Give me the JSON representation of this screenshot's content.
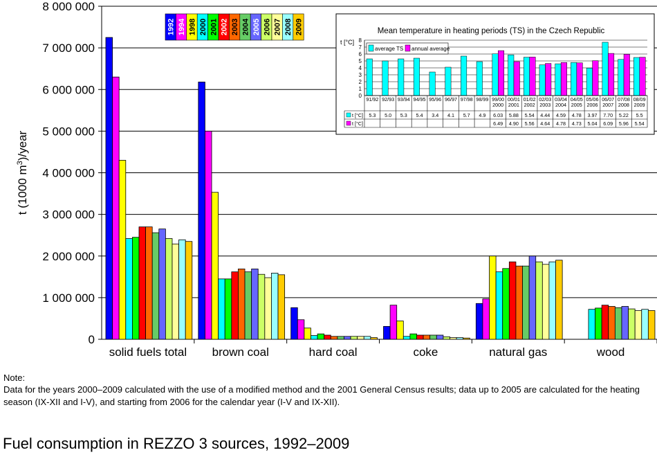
{
  "chart_data": [
    {
      "type": "bar",
      "ylabel": "t (1000 m³)/year",
      "ylabel_main": "t (1000 m",
      "ylabel_sup": "3",
      "ylabel_rest": ")/year",
      "ylim": [
        0,
        8000000
      ],
      "yticks": [
        0,
        1000000,
        2000000,
        3000000,
        4000000,
        5000000,
        6000000,
        7000000,
        8000000
      ],
      "ytick_labels": [
        "0",
        "1 000 000",
        "2 000 000",
        "3 000 000",
        "4 000 000",
        "5 000 000",
        "6 000 000",
        "7 000 000",
        "8 000 000"
      ],
      "grid": "horizontal",
      "legend_placement": "top (between solid fuels total and brown coal)",
      "categories": [
        "solid fuels total",
        "brown coal",
        "hard coal",
        "coke",
        "natural gas",
        "wood"
      ],
      "series": [
        {
          "name": "1992",
          "color": "#0000ff",
          "values": [
            7250000,
            6180000,
            760000,
            310000,
            860000,
            null
          ]
        },
        {
          "name": "1994",
          "color": "#ff00ff",
          "values": [
            6300000,
            5000000,
            470000,
            820000,
            970000,
            null
          ]
        },
        {
          "name": "1998",
          "color": "#ffff00",
          "values": [
            4300000,
            3530000,
            270000,
            440000,
            2000000,
            null
          ]
        },
        {
          "name": "2000",
          "color": "#00ffff",
          "values": [
            2420000,
            1450000,
            90000,
            70000,
            1620000,
            720000
          ]
        },
        {
          "name": "2001",
          "color": "#00ff00",
          "values": [
            2450000,
            1450000,
            130000,
            130000,
            1700000,
            750000
          ]
        },
        {
          "name": "2002",
          "color": "#ff0000",
          "values": [
            2700000,
            1620000,
            100000,
            100000,
            1860000,
            820000
          ]
        },
        {
          "name": "2003",
          "color": "#ff6600",
          "values": [
            2700000,
            1690000,
            70000,
            100000,
            1760000,
            790000
          ]
        },
        {
          "name": "2004",
          "color": "#66cc66",
          "values": [
            2560000,
            1620000,
            70000,
            100000,
            1760000,
            760000
          ]
        },
        {
          "name": "2005",
          "color": "#6666ff",
          "values": [
            2650000,
            1690000,
            70000,
            100000,
            2000000,
            790000
          ]
        },
        {
          "name": "2006",
          "color": "#ccff66",
          "values": [
            2420000,
            1560000,
            70000,
            60000,
            1860000,
            730000
          ]
        },
        {
          "name": "2007",
          "color": "#ffff99",
          "values": [
            2290000,
            1480000,
            70000,
            40000,
            1800000,
            690000
          ]
        },
        {
          "name": "2008",
          "color": "#99ffff",
          "values": [
            2390000,
            1590000,
            70000,
            40000,
            1860000,
            720000
          ]
        },
        {
          "name": "2009",
          "color": "#ffcc00",
          "values": [
            2350000,
            1550000,
            40000,
            30000,
            1900000,
            690000
          ]
        }
      ]
    },
    {
      "type": "bar",
      "title": "Mean temperature in heating periods (TS) in the Czech Republic",
      "ylabel": "t [°C]",
      "ylim": [
        0,
        8
      ],
      "yticks": [
        0,
        1,
        2,
        3,
        4,
        5,
        6,
        7,
        8
      ],
      "grid": "horizontal",
      "legend_placement": "top-left",
      "categories": [
        [
          "91/92"
        ],
        [
          "92/93"
        ],
        [
          "93/94"
        ],
        [
          "94/95"
        ],
        [
          "95/96"
        ],
        [
          "96/97"
        ],
        [
          "97/98"
        ],
        [
          "98/99"
        ],
        [
          "99/00",
          "2000"
        ],
        [
          "00/01",
          "2001"
        ],
        [
          "01/02",
          "2002"
        ],
        [
          "02/03",
          "2003"
        ],
        [
          "03/04",
          "2004"
        ],
        [
          "04/05",
          "2005"
        ],
        [
          "05/06",
          "2006"
        ],
        [
          "06/07",
          "2007"
        ],
        [
          "07/08",
          "2008"
        ],
        [
          "08/09",
          "2009"
        ]
      ],
      "series": [
        {
          "name": "average TS",
          "table_label": "t [°C]",
          "color": "#00ffff",
          "values": [
            5.3,
            5.0,
            5.3,
            5.4,
            3.4,
            4.1,
            5.7,
            4.9,
            6.03,
            5.88,
            5.54,
            4.44,
            4.59,
            4.78,
            3.97,
            7.7,
            5.22,
            5.5
          ],
          "labels": [
            "5.3",
            "5.0",
            "5.3",
            "5.4",
            "3.4",
            "4.1",
            "5.7",
            "4.9",
            "6.03",
            "5.88",
            "5.54",
            "4.44",
            "4.59",
            "4.78",
            "3.97",
            "7.70",
            "5.22",
            "5.5"
          ]
        },
        {
          "name": "annual average",
          "table_label": "t [°C]",
          "color": "#ff00ff",
          "values": [
            null,
            null,
            null,
            null,
            null,
            null,
            null,
            null,
            6.49,
            4.9,
            5.56,
            4.64,
            4.78,
            4.73,
            5.04,
            6.09,
            5.96,
            5.54
          ],
          "labels": [
            "",
            "",
            "",
            "",
            "",
            "",
            "",
            "",
            "6.49",
            "4.90",
            "5.56",
            "4.64",
            "4.78",
            "4.73",
            "5.04",
            "6.09",
            "5.96",
            "5.54"
          ]
        }
      ]
    }
  ],
  "note": {
    "title": "Note:",
    "text": "Data for the years 2000–2009 calculated with the use of a modified method and the 2001 General Census results; data up to 2005 are calculated for the heating season (IX-XII and I-V), and starting from 2006 for the calendar year (I-V and IX-XII)."
  },
  "caption": "Fuel consumption in REZZO 3 sources, 1992–2009"
}
